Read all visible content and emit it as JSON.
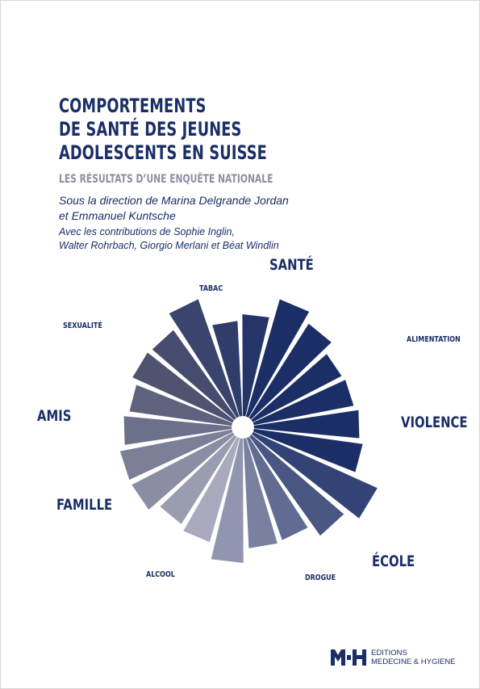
{
  "cover": {
    "title_lines": [
      "COMPORTEMENTS",
      "DE SANTÉ DES JEUNES",
      "ADOLESCENTS EN SUISSE"
    ],
    "subtitle": "LES RÉSULTATS D’UNE ENQUÊTE NATIONALE",
    "editors_lines": [
      "Sous la direction de Marina Delgrande Jordan",
      "et Emmanuel Kuntsche"
    ],
    "contributors_lines": [
      "Avec les contributions de Sophie Inglin,",
      "Walter Rohrbach, Giorgio Merlani et Béat Windlin"
    ]
  },
  "wheel_labels": {
    "sante": "SANTÉ",
    "tabac": "TABAC",
    "sexualite": "SEXUALITÉ",
    "alimentation": "ALIMENTATION",
    "violence": "VIOLENCE",
    "amis": "AMIS",
    "famille": "FAMILLE",
    "ecole": "ÉCOLE",
    "alcool": "ALCOOL",
    "drogue": "DROGUE"
  },
  "publisher": {
    "line1": "EDITIONS",
    "line2": "MEDECINE & HYGIENE"
  },
  "colors": {
    "navy": "#1b2e66",
    "grey_light": "#a9aabd",
    "grey_dark": "#4f5370"
  }
}
